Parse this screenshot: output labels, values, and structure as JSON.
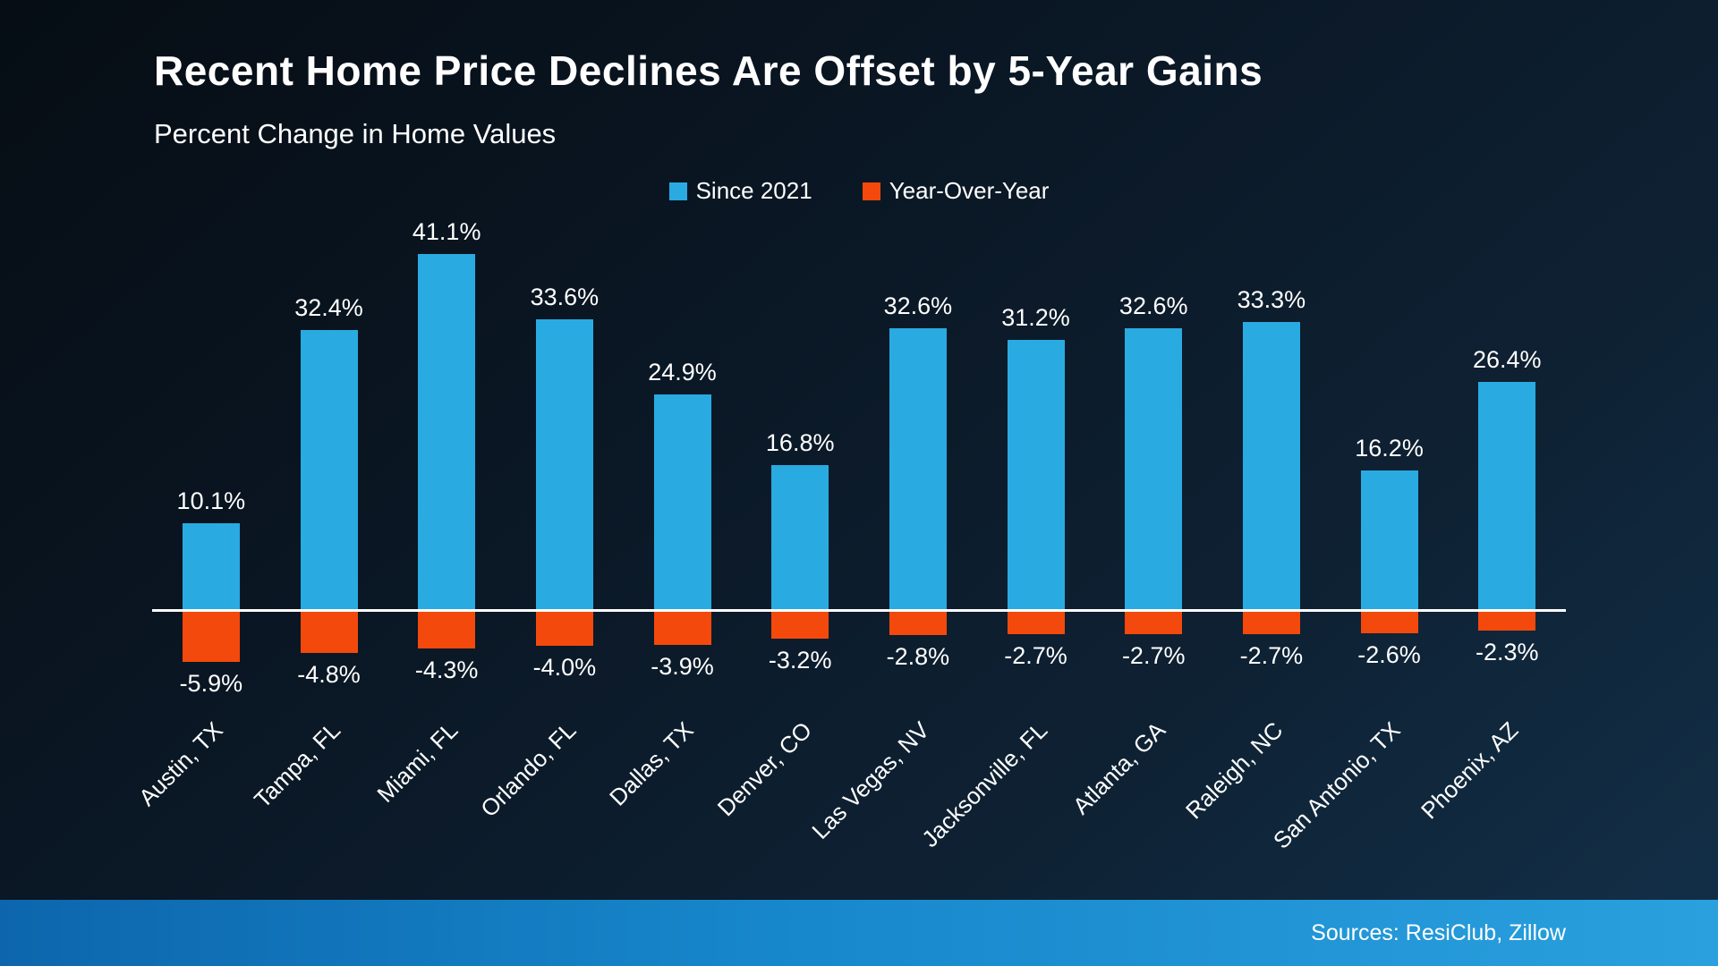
{
  "header": {
    "title": "Recent Home Price Declines Are Offset by 5-Year Gains",
    "subtitle": "Percent Change in Home Values"
  },
  "footer": {
    "sources": "Sources: ResiClub, Zillow"
  },
  "chart_data": {
    "type": "bar",
    "title": "Recent Home Price Declines Are Offset by 5-Year Gains",
    "subtitle": "Percent Change in Home Values",
    "categories": [
      "Austin, TX",
      "Tampa, FL",
      "Miami, FL",
      "Orlando, FL",
      "Dallas, TX",
      "Denver, CO",
      "Las Vegas, NV",
      "Jacksonville, FL",
      "Atlanta, GA",
      "Raleigh, NC",
      "San Antonio, TX",
      "Phoenix, AZ"
    ],
    "series": [
      {
        "name": "Since 2021",
        "color": "#29ABE2",
        "values": [
          10.1,
          32.4,
          41.1,
          33.6,
          24.9,
          16.8,
          32.6,
          31.2,
          32.6,
          33.3,
          16.2,
          26.4
        ]
      },
      {
        "name": "Year-Over-Year",
        "color": "#F4490C",
        "values": [
          -5.9,
          -4.8,
          -4.3,
          -4.0,
          -3.9,
          -3.2,
          -2.8,
          -2.7,
          -2.7,
          -2.7,
          -2.6,
          -2.3
        ]
      }
    ],
    "value_label_format": "percent",
    "ylim": [
      -6,
      42
    ],
    "grid": false,
    "legend_position": "top-center",
    "baseline_color": "#FFFFFF"
  }
}
